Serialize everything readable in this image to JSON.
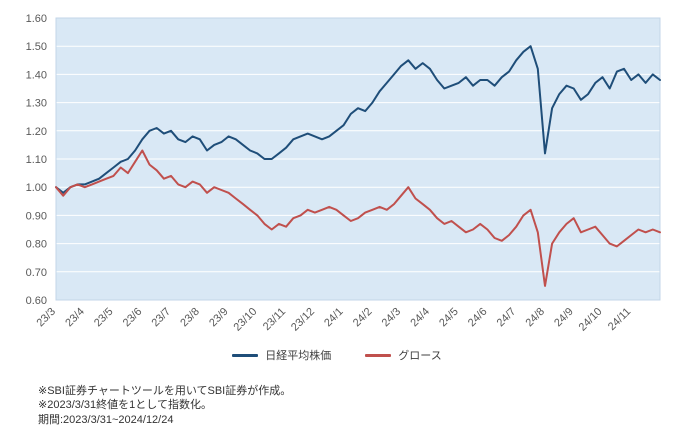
{
  "chart_data": {
    "type": "line",
    "title": "",
    "xlabel": "",
    "ylabel": "",
    "ylim": [
      0.6,
      1.6
    ],
    "y_ticks": [
      0.6,
      0.7,
      0.8,
      0.9,
      1.0,
      1.1,
      1.2,
      1.3,
      1.4,
      1.5,
      1.6
    ],
    "x_tick_labels": [
      "23/3",
      "23/4",
      "23/5",
      "23/6",
      "23/7",
      "23/8",
      "23/9",
      "23/10",
      "23/11",
      "23/12",
      "24/1",
      "24/2",
      "24/3",
      "24/4",
      "24/5",
      "24/6",
      "24/7",
      "24/8",
      "24/9",
      "24/10",
      "24/11"
    ],
    "points_per_tick": 4,
    "grid": true,
    "legend_position": "bottom",
    "plot_bg": "#d9e8f5",
    "grid_color": "#ffffff",
    "border_color": "#c3d6e8",
    "tick_label_color": "#595959",
    "series": [
      {
        "name": "日経平均株価",
        "color": "#1f4e79",
        "values": [
          1.0,
          0.98,
          1.0,
          1.01,
          1.01,
          1.02,
          1.03,
          1.05,
          1.07,
          1.09,
          1.1,
          1.13,
          1.17,
          1.2,
          1.21,
          1.19,
          1.2,
          1.17,
          1.16,
          1.18,
          1.17,
          1.13,
          1.15,
          1.16,
          1.18,
          1.17,
          1.15,
          1.13,
          1.12,
          1.1,
          1.1,
          1.12,
          1.14,
          1.17,
          1.18,
          1.19,
          1.18,
          1.17,
          1.18,
          1.2,
          1.22,
          1.26,
          1.28,
          1.27,
          1.3,
          1.34,
          1.37,
          1.4,
          1.43,
          1.45,
          1.42,
          1.44,
          1.42,
          1.38,
          1.35,
          1.36,
          1.37,
          1.39,
          1.36,
          1.38,
          1.38,
          1.36,
          1.39,
          1.41,
          1.45,
          1.48,
          1.5,
          1.42,
          1.12,
          1.28,
          1.33,
          1.36,
          1.35,
          1.31,
          1.33,
          1.37,
          1.39,
          1.35,
          1.41,
          1.42,
          1.38,
          1.4,
          1.37,
          1.4,
          1.38
        ]
      },
      {
        "name": "グロース",
        "color": "#c0504d",
        "values": [
          1.0,
          0.97,
          1.0,
          1.01,
          1.0,
          1.01,
          1.02,
          1.03,
          1.04,
          1.07,
          1.05,
          1.09,
          1.13,
          1.08,
          1.06,
          1.03,
          1.04,
          1.01,
          1.0,
          1.02,
          1.01,
          0.98,
          1.0,
          0.99,
          0.98,
          0.96,
          0.94,
          0.92,
          0.9,
          0.87,
          0.85,
          0.87,
          0.86,
          0.89,
          0.9,
          0.92,
          0.91,
          0.92,
          0.93,
          0.92,
          0.9,
          0.88,
          0.89,
          0.91,
          0.92,
          0.93,
          0.92,
          0.94,
          0.97,
          1.0,
          0.96,
          0.94,
          0.92,
          0.89,
          0.87,
          0.88,
          0.86,
          0.84,
          0.85,
          0.87,
          0.85,
          0.82,
          0.81,
          0.83,
          0.86,
          0.9,
          0.92,
          0.84,
          0.65,
          0.8,
          0.84,
          0.87,
          0.89,
          0.84,
          0.85,
          0.86,
          0.83,
          0.8,
          0.79,
          0.81,
          0.83,
          0.85,
          0.84,
          0.85,
          0.84
        ]
      }
    ]
  },
  "footnotes": {
    "line1": "※SBI証券チャートツールを用いてSBI証券が作成。",
    "line2": "※2023/3/31終値を1として指数化。",
    "line3": "期間:2023/3/31~2024/12/24"
  }
}
